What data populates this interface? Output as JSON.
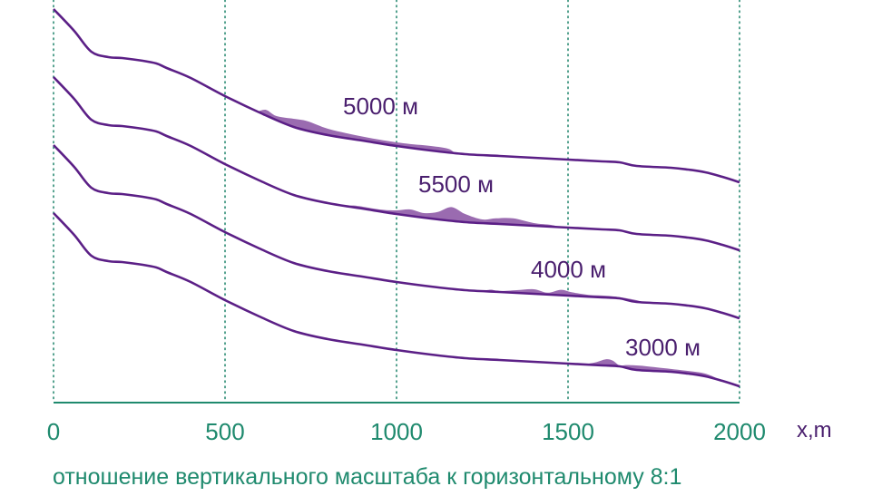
{
  "colors": {
    "profile": "#5b1f86",
    "deposit": "#9a6bb0",
    "axis": "#1f8a6e",
    "grid": "#2a8a72",
    "label": "#4a1f6e"
  },
  "caption": "отношение вертикального масштаба к горизонтальному 8:1",
  "chart_data": {
    "type": "line",
    "title": "",
    "xlabel": "x,m",
    "ylabel": "",
    "xlim": [
      0,
      2000
    ],
    "x_ticks": [
      0,
      500,
      1000,
      1500,
      2000
    ],
    "x_tick_labels": [
      "0",
      "500",
      "1000",
      "1500",
      "2000"
    ],
    "grid": "vertical dotted",
    "vertical_scale_ratio": "8:1",
    "base_profile": {
      "x": [
        0,
        60,
        110,
        160,
        200,
        260,
        300,
        330,
        400,
        500,
        600,
        700,
        800,
        900,
        1000,
        1100,
        1200,
        1300,
        1400,
        1500,
        1600,
        1650,
        1700,
        1800,
        1850,
        1900,
        1950,
        2000
      ],
      "depth": [
        0,
        24,
        47,
        53,
        54,
        57,
        60,
        65,
        76,
        96,
        114,
        130,
        139,
        145,
        151,
        156,
        160,
        162,
        164,
        166,
        168,
        169,
        173,
        175,
        177,
        180,
        185,
        191
      ]
    },
    "series": [
      {
        "label": "5000 м",
        "deposit": {
          "x": [
            595,
            620,
            650,
            700,
            740,
            800,
            870,
            950,
            1020,
            1100,
            1150,
            1170
          ],
          "thickness": [
            0,
            6,
            4,
            9,
            10,
            7,
            5,
            4,
            4,
            5,
            4,
            0
          ]
        }
      },
      {
        "label": "5500 м",
        "deposit": {
          "x": [
            855,
            880,
            950,
            1000,
            1040,
            1080,
            1120,
            1160,
            1200,
            1250,
            1290,
            1340,
            1400,
            1450,
            1480
          ],
          "thickness": [
            0,
            2,
            2,
            4,
            7,
            5,
            8,
            15,
            9,
            4,
            6,
            7,
            3,
            2,
            0
          ]
        }
      },
      {
        "label": "4000 м",
        "deposit": {
          "x": [
            1250,
            1275,
            1300,
            1350,
            1400,
            1440,
            1480,
            1510,
            1560,
            1620,
            1690,
            1720
          ],
          "thickness": [
            0,
            2,
            1,
            3,
            5,
            2,
            6,
            4,
            2,
            2,
            2,
            0
          ]
        }
      },
      {
        "label": "3000 м",
        "deposit": {
          "x": [
            1545,
            1580,
            1610,
            1630,
            1650,
            1670,
            1710,
            1760,
            1840,
            1900,
            1950
          ],
          "thickness": [
            0,
            3,
            7,
            6,
            1,
            3,
            5,
            4,
            3,
            3,
            0
          ]
        }
      }
    ]
  }
}
